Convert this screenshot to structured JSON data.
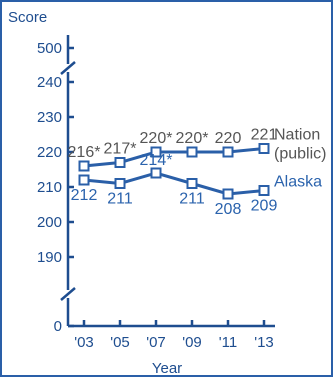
{
  "chart_data": {
    "type": "line",
    "ylabel": "Score",
    "xlabel": "Year",
    "categories": [
      "'03",
      "'05",
      "'07",
      "'09",
      "'11",
      "'13"
    ],
    "y_ticks_top": [
      500
    ],
    "y_ticks_main": [
      190,
      200,
      210,
      220,
      230,
      240
    ],
    "y_ticks_bottom": [
      0
    ],
    "ylim_main": [
      185,
      245
    ],
    "grid": false,
    "series": [
      {
        "name": "Nation (public)",
        "name_line1": "Nation",
        "name_line2": "(public)",
        "values": [
          216,
          217,
          220,
          220,
          220,
          221
        ],
        "labels": [
          "216*",
          "217*",
          "220*",
          "220*",
          "220",
          "221"
        ],
        "color": "#6b7fa6"
      },
      {
        "name": "Alaska",
        "values": [
          212,
          211,
          214,
          211,
          208,
          209
        ],
        "labels": [
          "212",
          "211",
          "214*",
          "211",
          "208",
          "209"
        ],
        "color": "#2b63ad"
      }
    ]
  }
}
